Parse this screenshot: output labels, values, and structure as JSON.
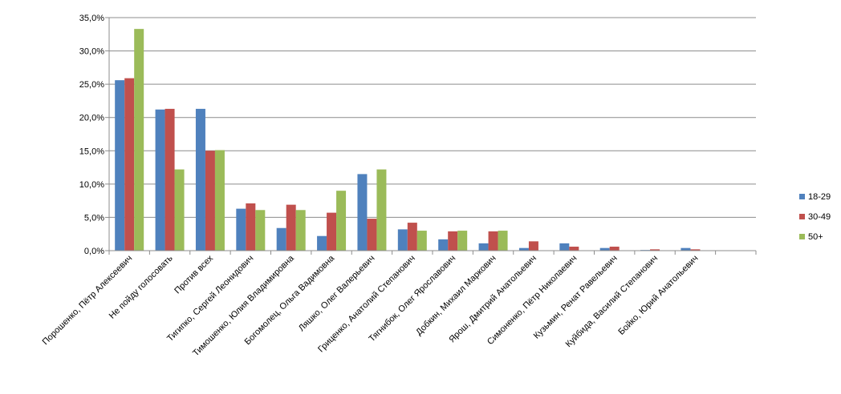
{
  "chart_data": {
    "type": "bar",
    "title": "",
    "xlabel": "",
    "ylabel": "",
    "ylim": [
      0,
      35
    ],
    "ytick_step": 5,
    "y_tick_format": "percent_comma_1",
    "grid": true,
    "legend_position": "right",
    "categories": [
      "Порошенко, Пётр Алексеевич",
      "Не пойду голосовать",
      "Против всех",
      "Тигипко, Сергей Леонидович",
      "Тимошенко, Юлия Владимировна",
      "Богомолец, Ольга Вадимовна",
      "Ляшко, Олег Валерьевич",
      "Гриценко, Анатолий Степанович",
      "Тягнибок, Олег Ярославович",
      "Добкин, Михаил Маркович",
      "Ярош, Дмитрий Анатольевич",
      "Симоненко, Пётр Николаевич",
      "Кузьмин, Ренат Равельевич",
      "Куйбида, Василий Степанович",
      "Бойко, Юрий Анатольевич",
      ""
    ],
    "series": [
      {
        "name": "18-29",
        "color": "#4f81bd",
        "values": [
          25.6,
          21.2,
          21.3,
          6.3,
          3.4,
          2.2,
          11.5,
          3.2,
          1.7,
          1.1,
          0.4,
          1.1,
          0.4,
          0.1,
          0.4,
          0
        ]
      },
      {
        "name": "30-49",
        "color": "#c0504d",
        "values": [
          25.9,
          21.3,
          15.0,
          7.1,
          6.9,
          5.7,
          4.8,
          4.2,
          2.9,
          2.9,
          1.4,
          0.6,
          0.6,
          0.2,
          0.2,
          0
        ]
      },
      {
        "name": "50+",
        "color": "#9bbb59",
        "values": [
          33.3,
          12.2,
          15.1,
          6.1,
          6.1,
          9.0,
          12.2,
          3.0,
          3.0,
          3.0,
          0,
          0,
          0,
          0,
          0,
          0
        ]
      }
    ]
  }
}
